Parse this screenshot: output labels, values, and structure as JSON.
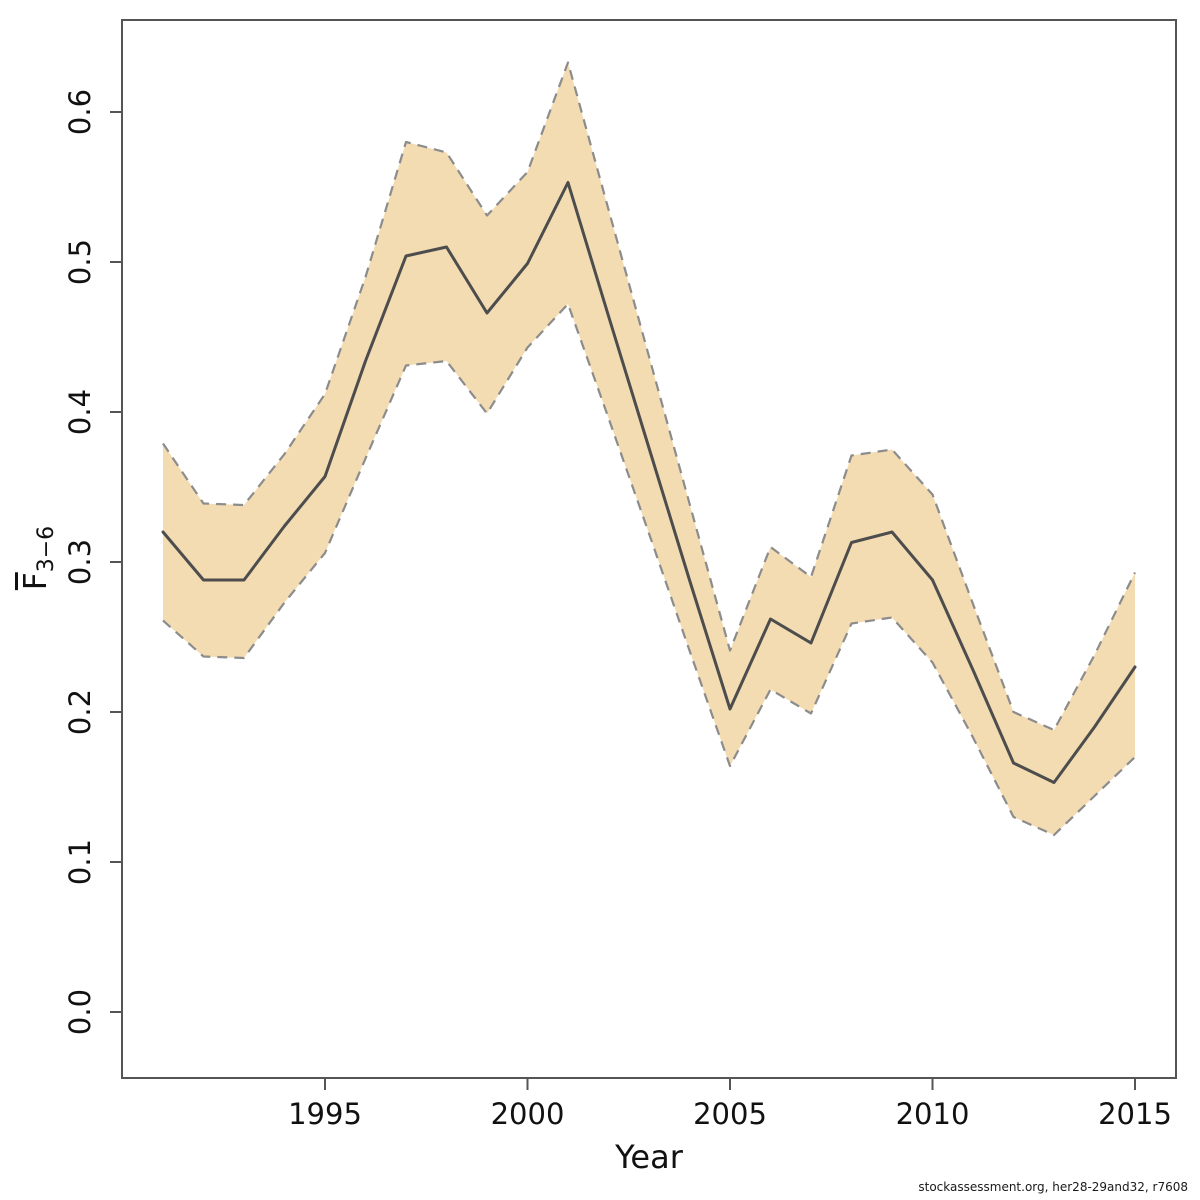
{
  "figure": {
    "xlabel": "Year",
    "ylabel": {
      "base": "F",
      "sub": "3−6"
    },
    "watermark": "stockassessment.org, her28-29and32, r7608"
  },
  "colors": {
    "band_fill": "#f3dcb2",
    "band_border": "#8c8c8c",
    "line": "#4d4d4d",
    "axis": "#555555",
    "text": "#111111",
    "background": "#ffffff"
  },
  "chart_data": {
    "type": "line",
    "title": "",
    "xlabel": "Year",
    "ylabel": "F̄3−6",
    "x": [
      1991,
      1992,
      1993,
      1994,
      1995,
      1996,
      1997,
      1998,
      1999,
      2000,
      2001,
      2002,
      2003,
      2004,
      2005,
      2006,
      2007,
      2008,
      2009,
      2010,
      2011,
      2012,
      2013,
      2014,
      2015
    ],
    "series": [
      {
        "name": "estimate",
        "values": [
          0.32,
          0.288,
          0.288,
          0.324,
          0.357,
          0.434,
          0.504,
          0.51,
          0.466,
          0.499,
          0.553,
          0.464,
          0.376,
          0.288,
          0.202,
          0.262,
          0.246,
          0.313,
          0.32,
          0.288,
          0.228,
          0.166,
          0.153,
          0.19,
          0.23
        ]
      },
      {
        "name": "ci_upper",
        "values": [
          0.379,
          0.339,
          0.338,
          0.372,
          0.412,
          0.49,
          0.58,
          0.573,
          0.531,
          0.56,
          0.633,
          0.535,
          0.437,
          0.339,
          0.241,
          0.31,
          0.29,
          0.371,
          0.375,
          0.345,
          0.272,
          0.2,
          0.188,
          0.238,
          0.293
        ]
      },
      {
        "name": "ci_lower",
        "values": [
          0.261,
          0.237,
          0.236,
          0.273,
          0.306,
          0.369,
          0.431,
          0.434,
          0.399,
          0.443,
          0.472,
          0.396,
          0.319,
          0.241,
          0.164,
          0.215,
          0.199,
          0.259,
          0.263,
          0.233,
          0.183,
          0.13,
          0.118,
          0.144,
          0.17
        ]
      }
    ],
    "band_between": [
      "ci_lower",
      "ci_upper"
    ],
    "x_ticks": [
      1995,
      2000,
      2005,
      2010,
      2015
    ],
    "y_ticks": [
      "0.0",
      "0.1",
      "0.2",
      "0.3",
      "0.4",
      "0.5",
      "0.6"
    ],
    "xlim": [
      1990,
      2016
    ],
    "ylim": [
      -0.044,
      0.661
    ],
    "grid": false,
    "legend": "none"
  }
}
